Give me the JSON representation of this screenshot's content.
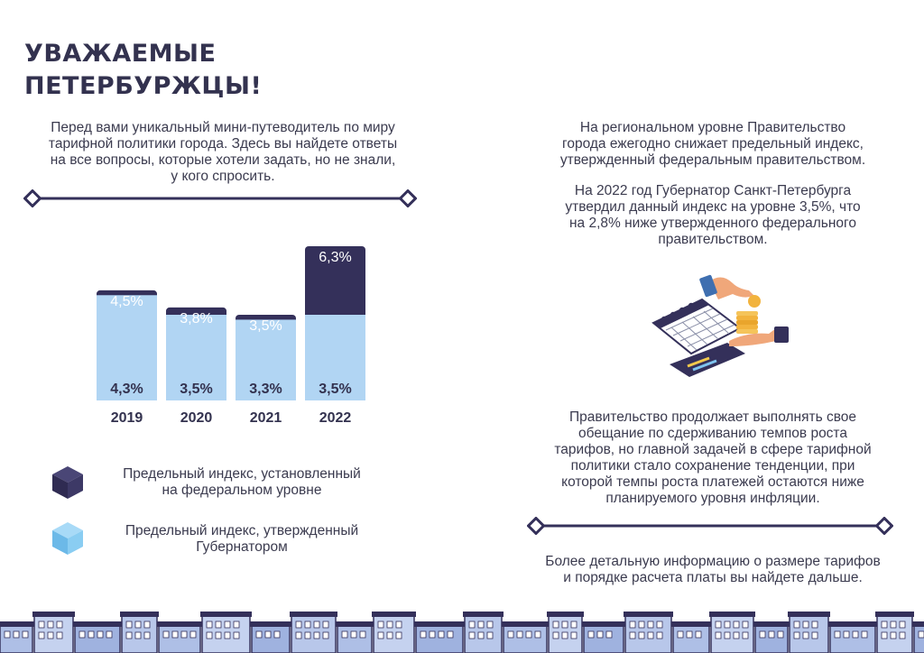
{
  "heading": {
    "line1": "УВАЖАЕМЫЕ",
    "line2": "ПЕТЕРБУРЖЦЫ!"
  },
  "intro": {
    "lines": [
      "Перед вами  уникальный мини-путеводитель по миру",
      "тарифной политики города. Здесь вы найдете ответы",
      "на все вопросы, которые хотели задать, но не знали,",
      "у кого спросить."
    ]
  },
  "right": {
    "p1": [
      "На региональном уровне Правительство",
      "города ежегодно снижает предельный индекс,",
      "утвержденный федеральным правительством."
    ],
    "p2": [
      "На 2022 год Губернатор Санкт-Петербурга",
      "утвердил данный индекс на уровне 3,5%, что",
      "на 2,8% ниже утвержденного федерального",
      "правительством."
    ],
    "p3": [
      "Правительство продолжает выполнять свое",
      "обещание по сдерживанию темпов роста",
      "тарифов, но главной задачей в сфере тарифной",
      "политики стало сохранение тенденции, при",
      "которой темпы роста платежей остаются ниже",
      "планируемого уровня инфляции."
    ],
    "p4": [
      "Более детальную информацию о размере тарифов",
      "и порядке расчета платы вы найдете дальше."
    ]
  },
  "legend": {
    "federal": {
      "lines": [
        "Предельный индекс, установленный",
        "на федеральном уровне"
      ],
      "icon": "dark-cube-icon"
    },
    "governor": {
      "lines": [
        "Предельный индекс, утвержденный",
        "Губернатором"
      ],
      "icon": "light-cube-icon"
    }
  },
  "colors": {
    "dark": "#34305a",
    "light": "#b1d5f3",
    "text": "#3b3b4f",
    "cube_light": "#7fc4ef"
  },
  "chart_data": {
    "type": "bar",
    "stacked": "overlay",
    "categories": [
      "2019",
      "2020",
      "2021",
      "2022"
    ],
    "series": [
      {
        "name": "Предельный индекс, установленный на федеральном уровне",
        "values": [
          4.5,
          3.8,
          3.5,
          6.3
        ],
        "labels": [
          "4,5%",
          "3,8%",
          "3,5%",
          "6,3%"
        ]
      },
      {
        "name": "Предельный индекс, утвержденный Губернатором",
        "values": [
          4.3,
          3.5,
          3.3,
          3.5
        ],
        "labels": [
          "4,3%",
          "3,5%",
          "3,3%",
          "3,5%"
        ]
      }
    ],
    "ylim": [
      0,
      6.3
    ],
    "grid": false,
    "legend": "bottom"
  }
}
